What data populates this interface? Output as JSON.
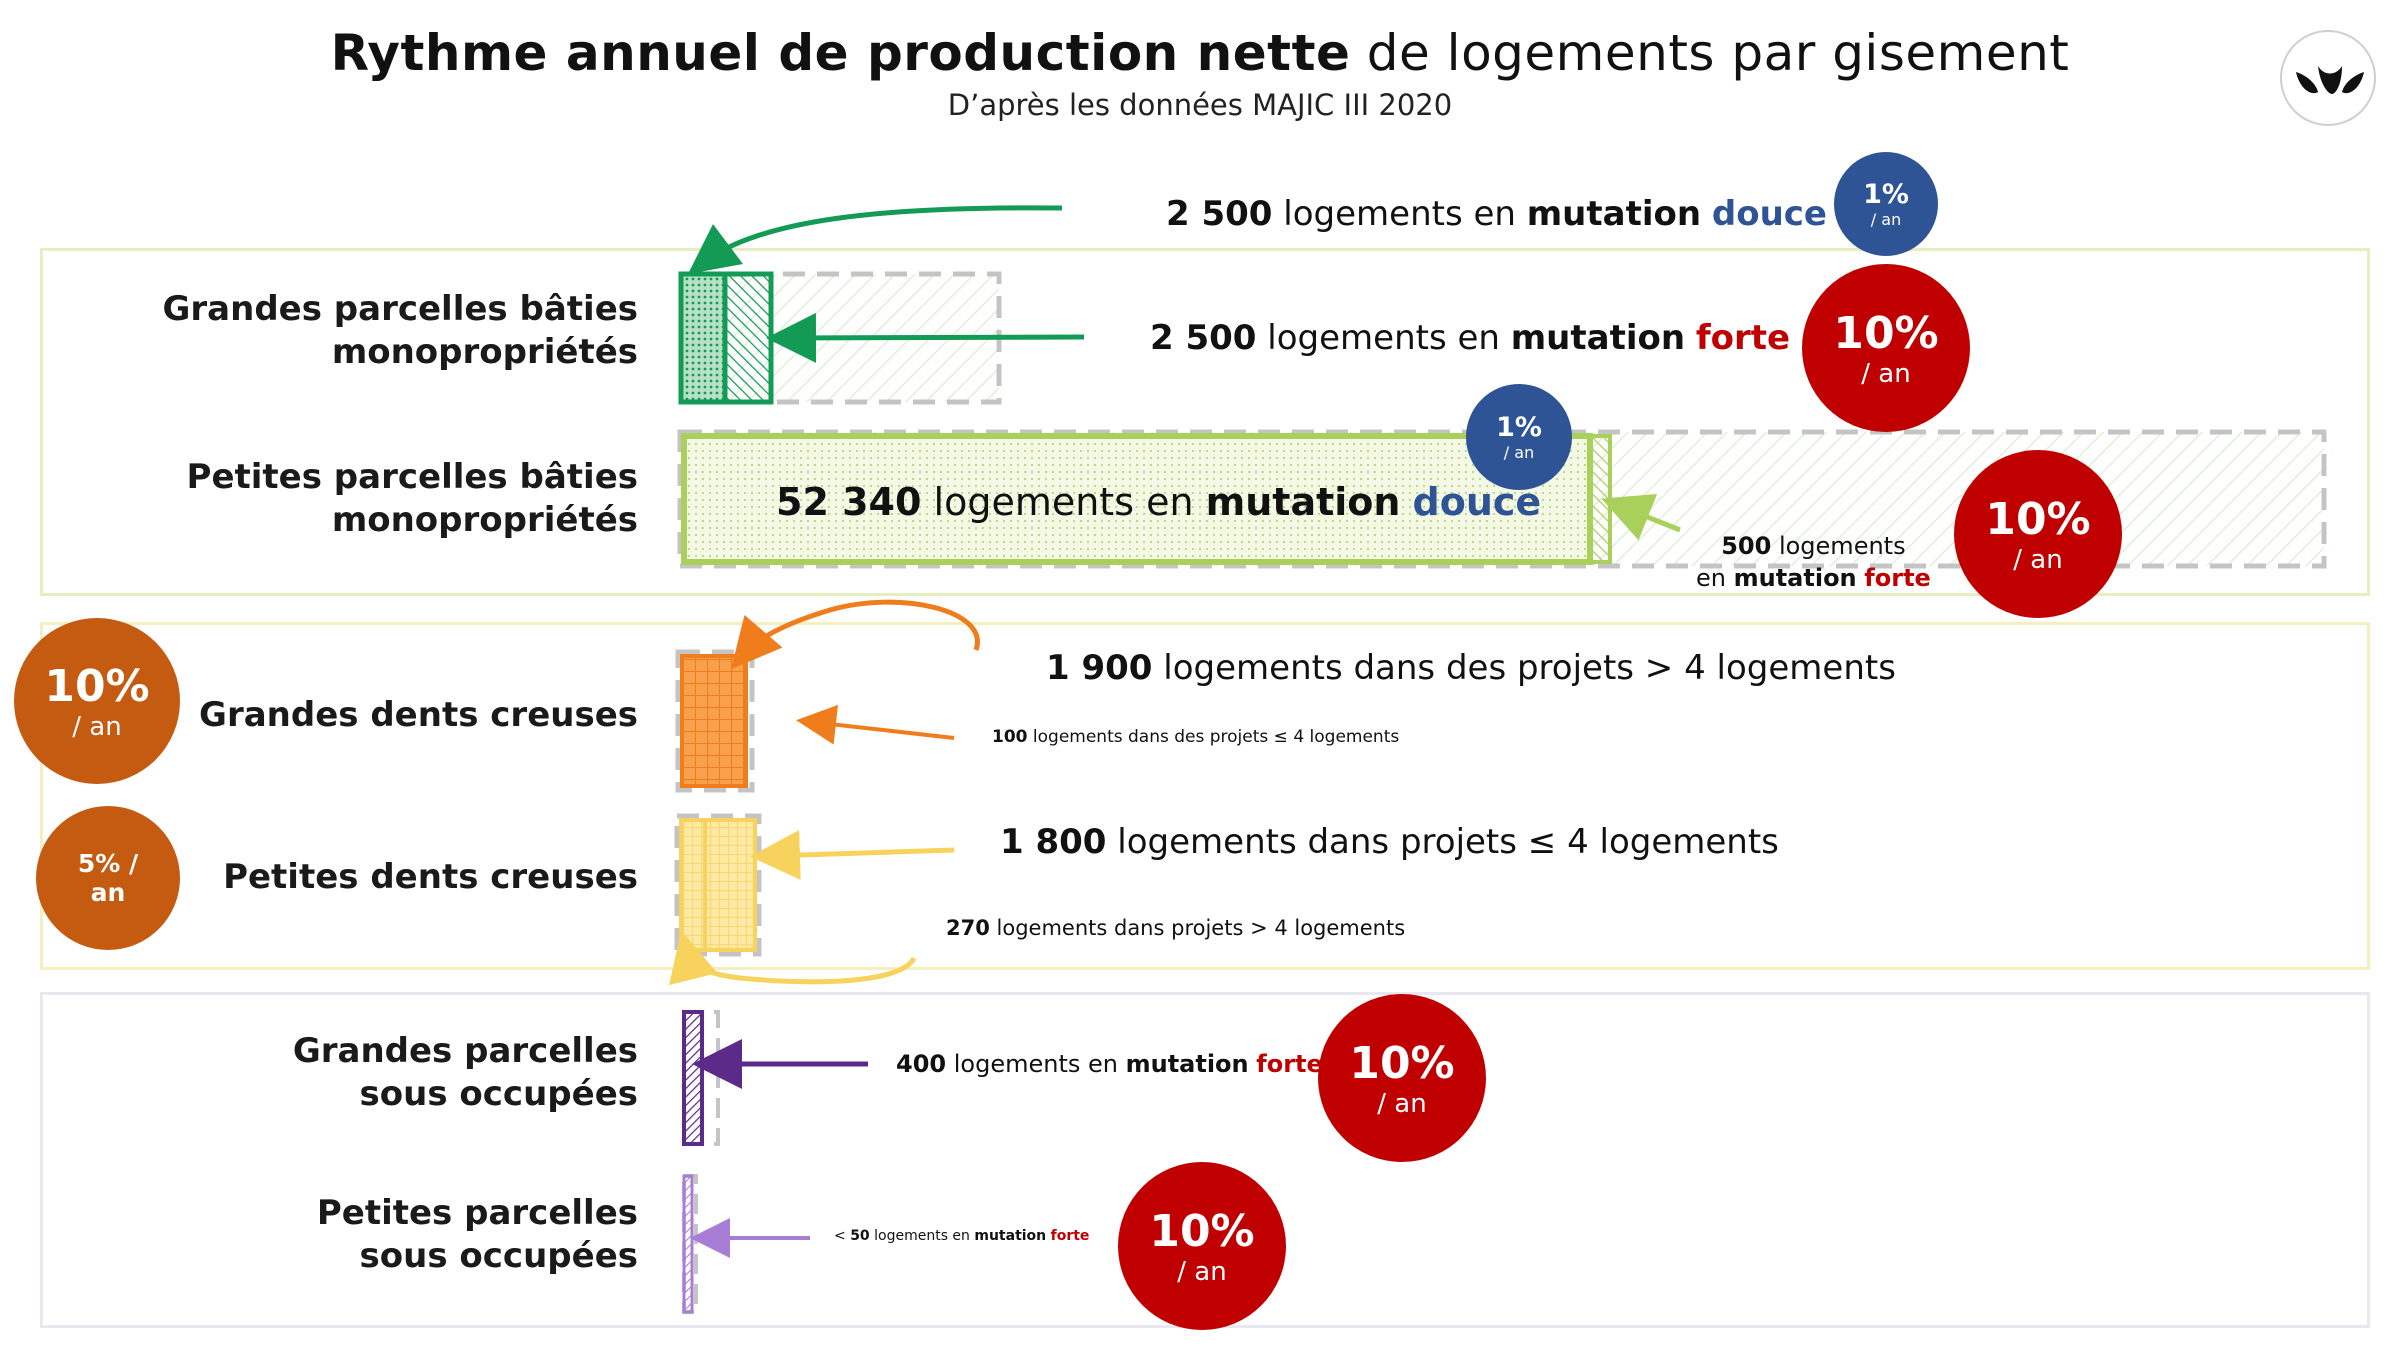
{
  "header": {
    "title_bold": "Rythme annuel de production nette",
    "title_rest": " de logements par gisement",
    "subtitle": "D’après les données MAJIC III 2020"
  },
  "rows": {
    "grandes_baties": "Grandes parcelles bâties monopropriétés",
    "grandes_baties_l1": "Grandes parcelles bâties",
    "grandes_baties_l2": "monopropriétés",
    "petites_baties_l1": "Petites parcelles bâties",
    "petites_baties_l2": "monopropriétés",
    "grandes_dents": "Grandes dents creuses",
    "petites_dents": "Petites dents creuses",
    "grandes_sous_l1": "Grandes parcelles",
    "grandes_sous_l2": "sous occupées",
    "petites_sous_l1": "Petites parcelles",
    "petites_sous_l2": "sous occupées"
  },
  "annotations": {
    "a1_num": "2 500",
    "a1_mid": " logements en ",
    "a1_mut": "mutation",
    "a1_type": "douce",
    "a2_num": "2 500",
    "a2_mid": " logements en ",
    "a2_mut": "mutation",
    "a2_type": "forte",
    "a3_num": "52 340",
    "a3_mid": " logements en ",
    "a3_mut": "mutation",
    "a3_type": "douce",
    "a4_num": "500",
    "a4_l1": " logements",
    "a4_en": "en ",
    "a4_mut": "mutation",
    "a4_type": "forte",
    "a5_num": "1 900",
    "a5_rest": " logements dans des projets > 4 logements",
    "a6_num": "100",
    "a6_rest": " logements dans des projets ≤ 4 logements",
    "a7_num": "1 800",
    "a7_rest": " logements dans projets ≤ 4 logements",
    "a8_num": "270",
    "a8_rest": " logements dans projets > 4 logements",
    "a9_num": "400",
    "a9_mid": " logements en ",
    "a9_mut": "mutation",
    "a9_type": "forte",
    "a10_pre": "< ",
    "a10_num": "50",
    "a10_mid": " logements en ",
    "a10_mut": "mutation",
    "a10_type": "forte"
  },
  "rates": {
    "r_blue_1": {
      "pct": "1%",
      "unit": "/ an"
    },
    "r_red_1": {
      "pct": "10%",
      "unit": "/ an"
    },
    "r_blue_2": {
      "pct": "1%",
      "unit": "/ an"
    },
    "r_red_2": {
      "pct": "10%",
      "unit": "/ an"
    },
    "r_orange_1": {
      "pct": "10%",
      "unit": "/ an"
    },
    "r_orange_2": {
      "pct": "5% /",
      "unit": "an"
    },
    "r_red_3": {
      "pct": "10%",
      "unit": "/ an"
    },
    "r_red_4": {
      "pct": "10%",
      "unit": "/ an"
    }
  },
  "colors": {
    "green_dark": "#139b55",
    "green_light": "#a9d05b",
    "orange": "#f07d1b",
    "yellow": "#f7d25c",
    "purple": "#5b2b8a",
    "lavender": "#a87dd6",
    "blue": "#2e5496",
    "red": "#c00000",
    "rust": "#c55a11",
    "grey_dash": "#c4c4c4"
  },
  "logo_icon": "tulip-leaves-logo-icon"
}
